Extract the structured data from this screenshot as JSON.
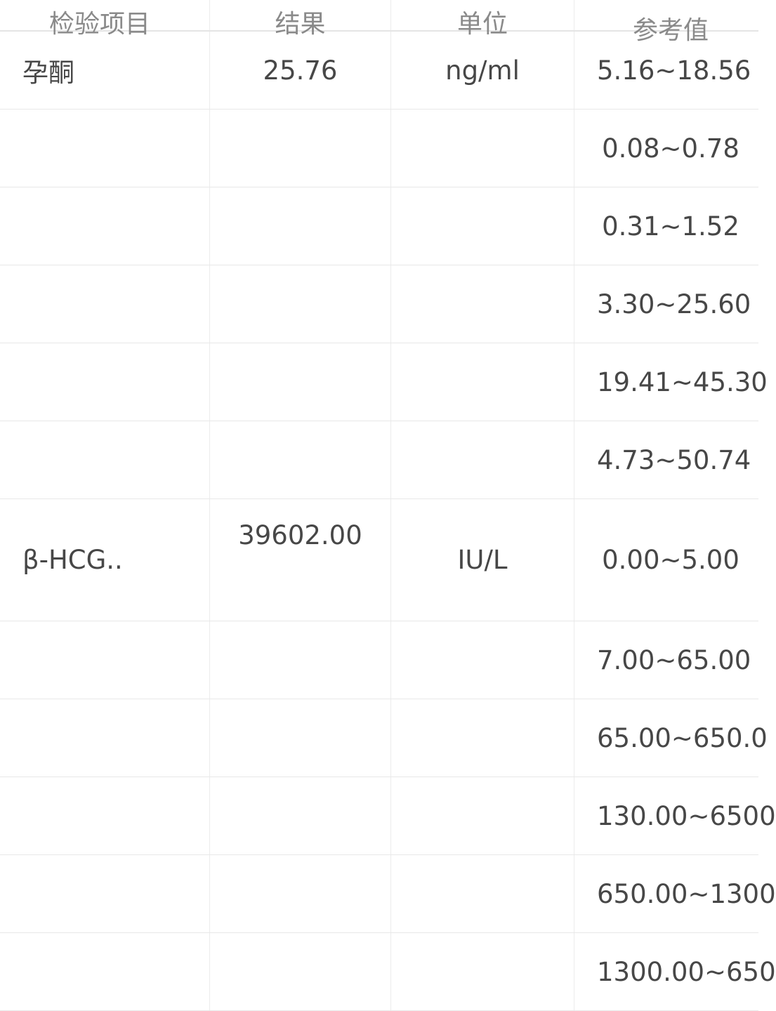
{
  "table": {
    "headers": [
      "检验项目",
      "结果",
      "单位",
      "参考值"
    ],
    "rows": [
      {
        "item": "孕酮",
        "result": "25.76",
        "unit": "ng/ml",
        "reference": "5.16~18.56"
      },
      {
        "item": "",
        "result": "",
        "unit": "",
        "reference": "0.08~0.78"
      },
      {
        "item": "",
        "result": "",
        "unit": "",
        "reference": "0.31~1.52"
      },
      {
        "item": "",
        "result": "",
        "unit": "",
        "reference": "3.30~25.60"
      },
      {
        "item": "",
        "result": "",
        "unit": "",
        "reference": "19.41~45.30"
      },
      {
        "item": "",
        "result": "",
        "unit": "",
        "reference": "4.73~50.74"
      },
      {
        "item": "β-HCG..",
        "result": "39602.00",
        "unit": "IU/L",
        "reference": "0.00~5.00"
      },
      {
        "item": "",
        "result": "",
        "unit": "",
        "reference": "7.00~65.00"
      },
      {
        "item": "",
        "result": "",
        "unit": "",
        "reference": "65.00~650.0"
      },
      {
        "item": "",
        "result": "",
        "unit": "",
        "reference": "130.00~6500"
      },
      {
        "item": "",
        "result": "",
        "unit": "",
        "reference": "650.00~1300"
      },
      {
        "item": "",
        "result": "",
        "unit": "",
        "reference": "1300.00~650"
      }
    ]
  }
}
